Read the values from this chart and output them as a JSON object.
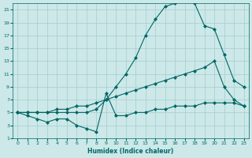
{
  "xlabel": "Humidex (Indice chaleur)",
  "xlim": [
    -0.5,
    23.5
  ],
  "ylim": [
    1,
    22
  ],
  "yticks": [
    1,
    3,
    5,
    7,
    9,
    11,
    13,
    15,
    17,
    19,
    21
  ],
  "xticks": [
    0,
    1,
    2,
    3,
    4,
    5,
    6,
    7,
    8,
    9,
    10,
    11,
    12,
    13,
    14,
    15,
    16,
    17,
    18,
    19,
    20,
    21,
    22,
    23
  ],
  "xtick_labels": [
    "0",
    "1",
    "2",
    "3",
    "4",
    "5",
    "6",
    "7",
    "8",
    "9",
    "10",
    "11",
    "12",
    "13",
    "14",
    "15",
    "16",
    "17",
    "18",
    "19",
    "20",
    "21",
    "22",
    "23"
  ],
  "bg_color": "#cce8e8",
  "grid_color": "#a8cccc",
  "line_color": "#006666",
  "series": [
    {
      "x": [
        0,
        1,
        2,
        3,
        4,
        5,
        6,
        7,
        8,
        9,
        10,
        11,
        12,
        13,
        14,
        15,
        16,
        17,
        18,
        19,
        20,
        21,
        22,
        23
      ],
      "y": [
        5.0,
        5.0,
        5.0,
        5.0,
        5.0,
        5.0,
        5.0,
        5.0,
        5.5,
        7.0,
        9.0,
        11.0,
        13.5,
        17.0,
        19.5,
        21.5,
        22.0,
        22.5,
        22.0,
        18.5,
        18.0,
        14.0,
        10.0,
        9.0
      ],
      "marker": "D",
      "markersize": 2.0
    },
    {
      "x": [
        0,
        1,
        2,
        3,
        4,
        5,
        6,
        7,
        8,
        9,
        10,
        11,
        12,
        13,
        14,
        15,
        16,
        17,
        18,
        19,
        20,
        21,
        22,
        23
      ],
      "y": [
        5.0,
        5.0,
        5.0,
        5.0,
        5.5,
        5.5,
        6.0,
        6.0,
        6.5,
        7.0,
        7.5,
        8.0,
        8.5,
        9.0,
        9.5,
        10.0,
        10.5,
        11.0,
        11.5,
        12.0,
        13.0,
        9.0,
        7.0,
        6.0
      ],
      "marker": "D",
      "markersize": 2.0
    },
    {
      "x": [
        0,
        1,
        2,
        3,
        4,
        5,
        6,
        7,
        8,
        9,
        10,
        11,
        12,
        13,
        14,
        15,
        16,
        17,
        18,
        19,
        20,
        21,
        22,
        23
      ],
      "y": [
        5.0,
        4.5,
        4.0,
        3.5,
        4.0,
        4.0,
        3.0,
        2.5,
        2.0,
        8.0,
        4.5,
        4.5,
        5.0,
        5.0,
        5.5,
        5.5,
        6.0,
        6.0,
        6.0,
        6.5,
        6.5,
        6.5,
        6.5,
        6.0
      ],
      "marker": "D",
      "markersize": 2.0
    }
  ]
}
